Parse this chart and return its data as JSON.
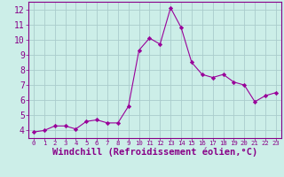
{
  "x": [
    0,
    1,
    2,
    3,
    4,
    5,
    6,
    7,
    8,
    9,
    10,
    11,
    12,
    13,
    14,
    15,
    16,
    17,
    18,
    19,
    20,
    21,
    22,
    23
  ],
  "y": [
    3.9,
    4.0,
    4.3,
    4.3,
    4.1,
    4.6,
    4.7,
    4.5,
    4.5,
    5.6,
    9.3,
    10.1,
    9.7,
    12.1,
    10.8,
    8.5,
    7.7,
    7.5,
    7.7,
    7.2,
    7.0,
    5.9,
    6.3,
    6.5
  ],
  "line_color": "#990099",
  "marker": "D",
  "marker_size": 2.2,
  "bg_color": "#cceee8",
  "grid_color": "#aacccc",
  "xlabel": "Windchill (Refroidissement éolien,°C)",
  "xlabel_color": "#880088",
  "xlim": [
    -0.5,
    23.5
  ],
  "ylim": [
    3.5,
    12.5
  ],
  "xticks": [
    0,
    1,
    2,
    3,
    4,
    5,
    6,
    7,
    8,
    9,
    10,
    11,
    12,
    13,
    14,
    15,
    16,
    17,
    18,
    19,
    20,
    21,
    22,
    23
  ],
  "yticks": [
    4,
    5,
    6,
    7,
    8,
    9,
    10,
    11,
    12
  ],
  "tick_color": "#880088",
  "xlabel_fontsize": 7.5,
  "tick_fontsize": 7
}
